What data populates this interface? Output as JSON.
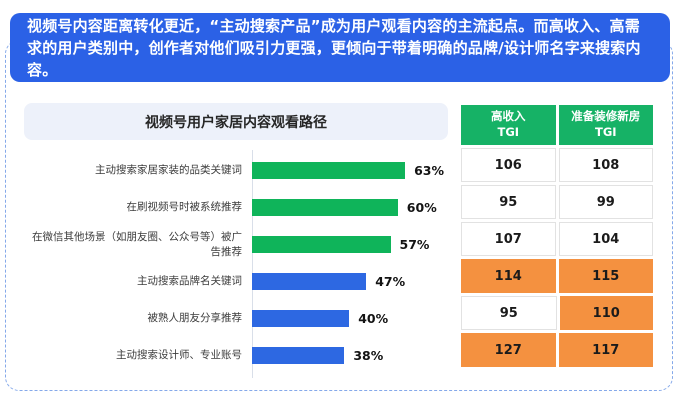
{
  "banner": {
    "text": "视频号内容距离转化更近，“主动搜索产品”成为用户观看内容的主流起点。而高收入、高需求的用户类别中，创作者对他们吸引力更强，更倾向于带着明确的品牌/设计师名字来搜索内容。",
    "bg_color": "#2B61E6",
    "text_color": "#FFFFFF"
  },
  "chart_data": {
    "type": "bar",
    "orientation": "horizontal",
    "title": "视频号用户家居内容观看路径",
    "categories": [
      "主动搜索家居家装的品类关键词",
      "在刷视频号时被系统推荐",
      "在微信其他场景（如朋友圈、公众号等）被广告推荐",
      "主动搜索品牌名关键词",
      "被熟人朋友分享推荐",
      "主动搜索设计师、专业账号"
    ],
    "values": [
      63,
      60,
      57,
      47,
      40,
      38
    ],
    "value_labels": [
      "63%",
      "60%",
      "57%",
      "47%",
      "40%",
      "38%"
    ],
    "bar_colors": [
      "#0FB45A",
      "#0FB45A",
      "#0FB45A",
      "#2D68E2",
      "#2D68E2",
      "#2D68E2"
    ],
    "xlim": [
      0,
      100
    ],
    "unit": "%",
    "grid": false,
    "legend": null
  },
  "table": {
    "headers": [
      "高收入\nTGI",
      "准备装修新房\nTGI"
    ],
    "header_bg": "#16B266",
    "highlight_color": "#F49140",
    "rows": [
      {
        "values": [
          "106",
          "108"
        ],
        "highlight": [
          false,
          false
        ]
      },
      {
        "values": [
          "95",
          "99"
        ],
        "highlight": [
          false,
          false
        ]
      },
      {
        "values": [
          "107",
          "104"
        ],
        "highlight": [
          false,
          false
        ]
      },
      {
        "values": [
          "114",
          "115"
        ],
        "highlight": [
          true,
          true
        ]
      },
      {
        "values": [
          "95",
          "110"
        ],
        "highlight": [
          false,
          true
        ]
      },
      {
        "values": [
          "127",
          "117"
        ],
        "highlight": [
          true,
          true
        ]
      }
    ]
  },
  "colors": {
    "frame_border": "#85A9EA",
    "title_bar_bg": "#EDF1FA"
  }
}
